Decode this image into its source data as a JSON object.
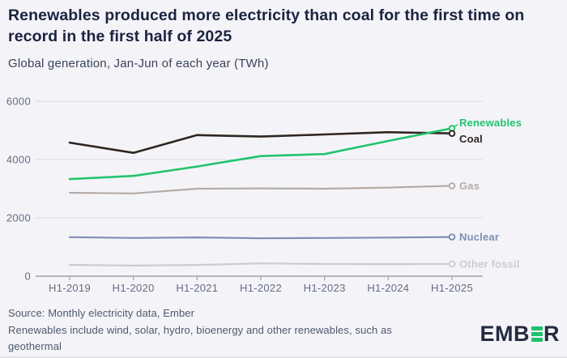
{
  "header": {
    "title": "Renewables produced more electricity than coal for the first time on record in the first half of 2025",
    "subtitle": "Global generation, Jan-Jun of each year (TWh)"
  },
  "chart_data": {
    "type": "line",
    "title": "Renewables produced more electricity than coal for the first time on record in the first half of 2025",
    "subtitle": "Global generation, Jan-Jun of each year (TWh)",
    "unit": "TWh",
    "categories": [
      "H1-2019",
      "H1-2020",
      "H1-2021",
      "H1-2022",
      "H1-2023",
      "H1-2024",
      "H1-2025"
    ],
    "series": [
      {
        "name": "Renewables",
        "color": "#22c46e",
        "values": [
          3330,
          3440,
          3760,
          4120,
          4190,
          4640,
          5072
        ],
        "label_offset": -7,
        "leader": true,
        "line_width": 2.6,
        "label_weight": 700
      },
      {
        "name": "Coal",
        "color": "#2f2521",
        "values": [
          4580,
          4230,
          4840,
          4790,
          4860,
          4940,
          4896
        ],
        "label_offset": 7,
        "leader": false,
        "line_width": 2.6,
        "label_weight": 700
      },
      {
        "name": "Gas",
        "color": "#b5aba8",
        "values": [
          2860,
          2840,
          3000,
          3010,
          3000,
          3040,
          3100
        ],
        "label_offset": 0,
        "leader": false,
        "line_width": 2.2,
        "label_weight": 600
      },
      {
        "name": "Nuclear",
        "color": "#7e8fb3",
        "values": [
          1340,
          1310,
          1330,
          1300,
          1310,
          1325,
          1345
        ],
        "label_offset": 0,
        "leader": false,
        "line_width": 2.2,
        "label_weight": 600
      },
      {
        "name": "Other fossil",
        "color": "#cccbd3",
        "values": [
          390,
          365,
          385,
          440,
          420,
          415,
          420
        ],
        "label_offset": 0,
        "leader": false,
        "line_width": 2.2,
        "label_weight": 600
      }
    ],
    "yticks": [
      0,
      2000,
      4000,
      6000
    ],
    "ylim": [
      0,
      6000
    ],
    "grid": true,
    "legend_position": "right-of-line-ends",
    "colors": {
      "background": "#f4f4f8",
      "gridline": "#d9dae2",
      "axis_line": "#9ba0ae",
      "axis_label": "#626c84"
    }
  },
  "footer": {
    "source": "Source: Monthly electricity data, Ember",
    "note": "Renewables include wind, solar, hydro, bioenergy and other renewables, such as geothermal",
    "logo": {
      "left": "EMB",
      "right": "R",
      "accent": "#1fc06a",
      "text_color": "#242b41"
    }
  }
}
